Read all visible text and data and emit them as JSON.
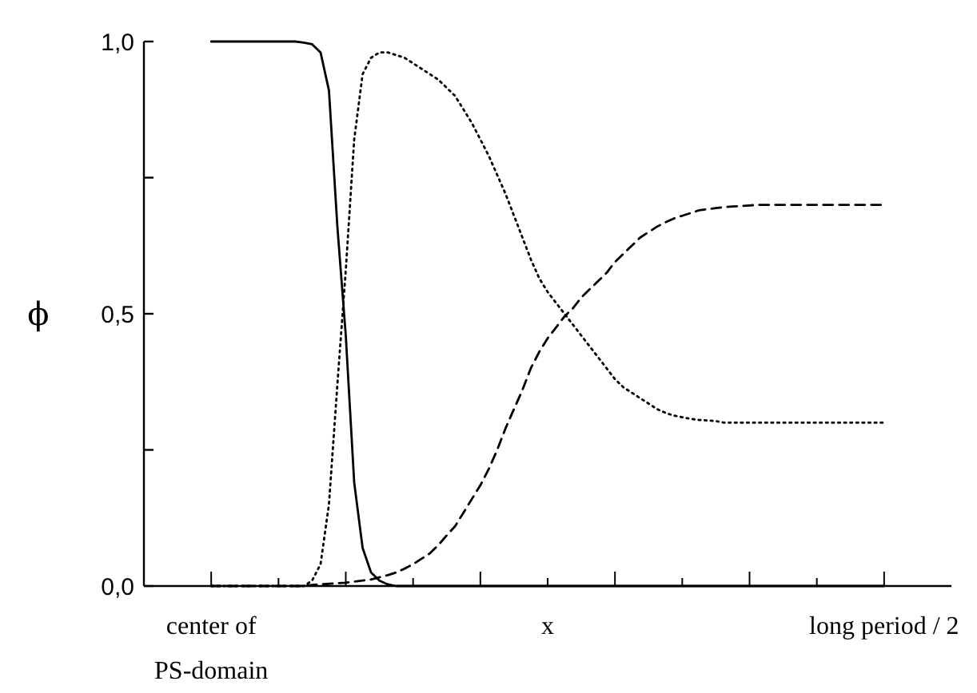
{
  "chart_data": {
    "type": "line",
    "xlabel": "x",
    "ylabel": "ϕ",
    "ylim": [
      0,
      1
    ],
    "categories": [
      "center of\nPS-domain",
      null,
      null,
      null,
      null,
      null,
      null,
      null,
      null,
      null,
      null,
      null,
      null,
      null,
      null,
      null,
      null,
      null,
      null,
      null,
      null,
      null,
      null,
      null,
      null,
      null,
      null,
      null,
      null,
      null,
      null,
      null,
      null,
      null,
      null,
      null,
      null,
      null,
      null,
      null,
      null,
      null,
      null,
      null,
      null,
      null,
      null,
      null,
      null,
      null,
      null,
      null,
      null,
      null,
      null,
      null,
      null,
      null,
      null,
      null,
      null,
      null,
      null,
      null,
      null,
      null,
      null,
      null,
      null,
      null,
      null,
      null,
      null,
      null,
      null,
      null,
      null,
      null,
      null,
      null,
      "long period / 2"
    ],
    "yticks": [
      {
        "value": 0,
        "label": "0,0"
      },
      {
        "value": 0.5,
        "label": "0,5"
      },
      {
        "value": 1,
        "label": "1,0"
      }
    ],
    "grid": false,
    "marker": "none",
    "series": [
      {
        "color": "#000000",
        "line_style": "solid",
        "values": [
          1,
          1,
          1,
          1,
          1,
          1,
          1,
          1,
          1,
          1,
          1,
          0.998,
          0.995,
          0.98,
          0.91,
          0.66,
          0.46,
          0.19,
          0.07,
          0.025,
          0.01,
          0.003,
          0,
          0,
          0,
          0,
          0,
          0,
          0,
          0,
          0,
          0,
          0,
          0,
          0,
          0,
          0,
          0,
          0,
          0,
          0,
          0,
          0,
          0,
          0,
          0,
          0,
          0,
          0,
          0,
          0,
          0,
          0,
          0,
          0,
          0,
          0,
          0,
          0,
          0,
          0,
          0,
          0,
          0,
          0,
          0,
          0,
          0,
          0,
          0,
          0,
          0,
          0,
          0,
          0,
          0,
          0,
          0,
          0,
          0,
          0
        ]
      },
      {
        "color": "#000000",
        "line_style": "dotted",
        "values": [
          0,
          0,
          0,
          0,
          0,
          0,
          0,
          0,
          0,
          0,
          0,
          0,
          0.01,
          0.04,
          0.15,
          0.37,
          0.58,
          0.82,
          0.94,
          0.97,
          0.98,
          0.98,
          0.975,
          0.97,
          0.96,
          0.95,
          0.94,
          0.93,
          0.915,
          0.9,
          0.875,
          0.85,
          0.82,
          0.79,
          0.755,
          0.72,
          0.68,
          0.64,
          0.6,
          0.565,
          0.54,
          0.52,
          0.5,
          0.48,
          0.46,
          0.44,
          0.42,
          0.4,
          0.38,
          0.365,
          0.355,
          0.345,
          0.335,
          0.325,
          0.318,
          0.313,
          0.31,
          0.307,
          0.305,
          0.304,
          0.303,
          0.3,
          0.3,
          0.3,
          0.3,
          0.3,
          0.3,
          0.3,
          0.3,
          0.3,
          0.3,
          0.3,
          0.3,
          0.3,
          0.3,
          0.3,
          0.3,
          0.3,
          0.3,
          0.3,
          0.3
        ]
      },
      {
        "color": "#000000",
        "line_style": "dashed",
        "values": [
          0,
          0,
          0,
          0,
          0,
          0,
          0,
          0,
          0,
          0,
          0,
          0,
          0.002,
          0.003,
          0.004,
          0.005,
          0.006,
          0.008,
          0.01,
          0.012,
          0.016,
          0.02,
          0.025,
          0.032,
          0.04,
          0.05,
          0.06,
          0.075,
          0.093,
          0.11,
          0.135,
          0.16,
          0.185,
          0.215,
          0.25,
          0.29,
          0.325,
          0.36,
          0.4,
          0.43,
          0.455,
          0.475,
          0.495,
          0.51,
          0.53,
          0.545,
          0.56,
          0.575,
          0.595,
          0.61,
          0.625,
          0.64,
          0.65,
          0.66,
          0.668,
          0.675,
          0.68,
          0.685,
          0.69,
          0.692,
          0.694,
          0.696,
          0.697,
          0.698,
          0.699,
          0.7,
          0.7,
          0.7,
          0.7,
          0.7,
          0.7,
          0.7,
          0.7,
          0.7,
          0.7,
          0.7,
          0.7,
          0.7,
          0.7,
          0.7,
          0.7
        ]
      }
    ]
  }
}
